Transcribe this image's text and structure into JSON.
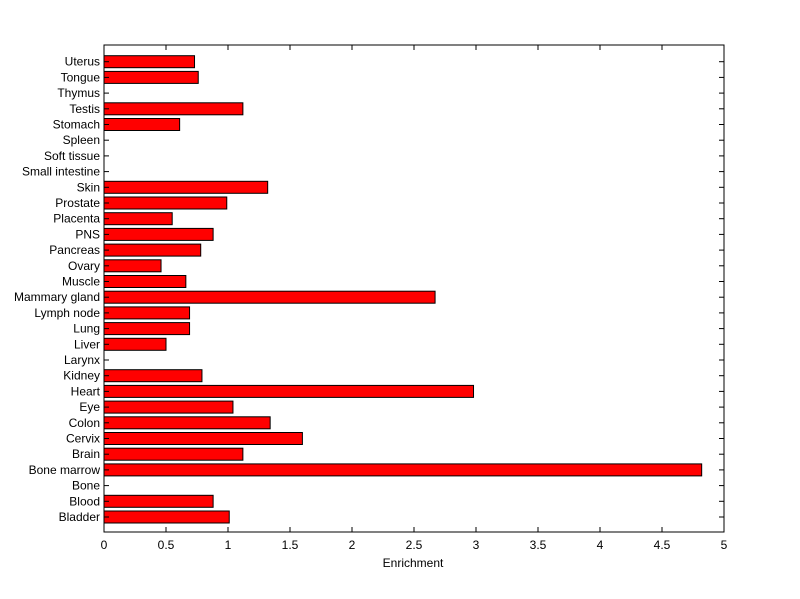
{
  "chart_data": {
    "type": "bar",
    "orientation": "horizontal",
    "categories": [
      "Bladder",
      "Blood",
      "Bone",
      "Bone marrow",
      "Brain",
      "Cervix",
      "Colon",
      "Eye",
      "Heart",
      "Kidney",
      "Larynx",
      "Liver",
      "Lung",
      "Lymph node",
      "Mammary gland",
      "Muscle",
      "Ovary",
      "Pancreas",
      "PNS",
      "Placenta",
      "Prostate",
      "Skin",
      "Small intestine",
      "Soft tissue",
      "Spleen",
      "Stomach",
      "Testis",
      "Thymus",
      "Tongue",
      "Uterus"
    ],
    "values": [
      1.01,
      0.88,
      0,
      4.82,
      1.12,
      1.6,
      1.34,
      1.04,
      2.98,
      0.79,
      0,
      0.5,
      0.69,
      0.69,
      2.67,
      0.66,
      0.46,
      0.78,
      0.88,
      0.55,
      0.99,
      1.32,
      0,
      0,
      0,
      0.61,
      1.12,
      0,
      0.76,
      0.73
    ],
    "xlabel": "Enrichment",
    "ylabel": "",
    "title": "",
    "xlim": [
      0,
      5
    ],
    "xticks": [
      "0",
      "0.5",
      "1",
      "1.5",
      "2",
      "2.5",
      "3",
      "3.5",
      "4",
      "4.5",
      "5"
    ],
    "grid": false,
    "bar_color": "#ff0000",
    "bar_edge_color": "#000000"
  }
}
